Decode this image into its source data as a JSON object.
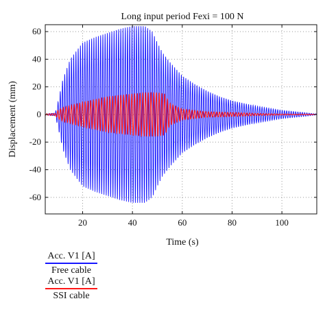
{
  "chart_data": {
    "type": "line",
    "title": "Long input period Fexi = 100 N",
    "xlabel": "Time (s)",
    "ylabel": "Displacement (mm)",
    "xlim": [
      5,
      114
    ],
    "ylim": [
      -72,
      65
    ],
    "xticks": [
      20,
      40,
      60,
      80,
      100
    ],
    "yticks": [
      -60,
      -40,
      -20,
      0,
      20,
      40,
      60
    ],
    "grid": true,
    "legend_position": "bottom-left-outside",
    "series": [
      {
        "label": "Acc. V1 [A]",
        "description": "Free cable",
        "color": "#1515ff",
        "envelope": {
          "t": [
            5,
            9,
            10,
            12,
            15,
            20,
            25,
            30,
            35,
            40,
            45,
            48,
            50,
            52,
            55,
            60,
            65,
            70,
            75,
            80,
            90,
            100,
            110,
            113
          ],
          "amp": [
            0.5,
            1,
            8,
            25,
            40,
            52,
            56,
            59,
            62,
            64,
            64,
            60,
            52,
            45,
            38,
            28,
            22,
            17,
            13,
            10,
            6,
            3,
            1.2,
            0.5
          ]
        }
      },
      {
        "label": "Acc. V1 [A]",
        "description": "SSI cable",
        "color": "#ff1515",
        "envelope": {
          "t": [
            5,
            9,
            10,
            12,
            15,
            20,
            25,
            30,
            35,
            40,
            45,
            50,
            53,
            55,
            60,
            65,
            70,
            80,
            90,
            100,
            113
          ],
          "amp": [
            0.5,
            0.8,
            3,
            5,
            6.5,
            9,
            11,
            13,
            14,
            15,
            16,
            16,
            15,
            8,
            4,
            3,
            2,
            1.5,
            0.8,
            0.4,
            0.2
          ]
        }
      }
    ]
  }
}
